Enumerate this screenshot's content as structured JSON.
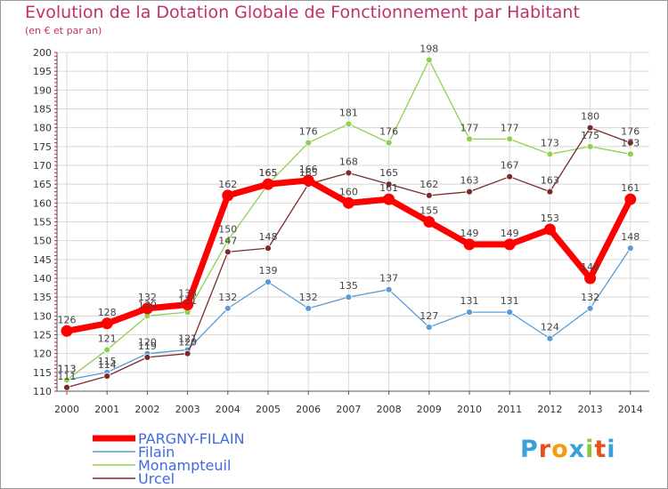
{
  "title": "Evolution de la Dotation Globale de Fonctionnement par Habitant",
  "subtitle": "(en € et par an)",
  "logo": {
    "text": "Proxiti"
  },
  "chart_data": {
    "type": "line",
    "x": [
      "2000",
      "2001",
      "2002",
      "2003",
      "2004",
      "2005",
      "2006",
      "2007",
      "2008",
      "2009",
      "2010",
      "2011",
      "2012",
      "2013",
      "2014"
    ],
    "ylim": [
      110,
      200
    ],
    "yticks": [
      110,
      115,
      120,
      125,
      130,
      135,
      140,
      145,
      150,
      155,
      160,
      165,
      170,
      175,
      180,
      185,
      190,
      195,
      200
    ],
    "grid": true,
    "legend_position": "bottom",
    "series": [
      {
        "name": "PARGNY-FILAIN",
        "color": "#ff0000",
        "values": [
          126,
          128,
          132,
          133,
          162,
          165,
          166,
          160,
          161,
          155,
          149,
          149,
          153,
          140,
          161
        ],
        "labels": [
          "126",
          "128",
          "132",
          "133",
          "162",
          "165",
          "166",
          "160",
          "161",
          "155",
          "149",
          "149",
          "153",
          "140",
          "161"
        ]
      },
      {
        "name": "Filain",
        "color": "#5b9bd5",
        "values": [
          113,
          115,
          120,
          121,
          132,
          139,
          132,
          135,
          137,
          127,
          131,
          131,
          124,
          132,
          148
        ],
        "labels": [
          "113",
          "115",
          "120",
          "121",
          "132",
          "139",
          "132",
          "135",
          "137",
          "127",
          "131",
          "131",
          "124",
          "132",
          "148"
        ]
      },
      {
        "name": "Monampteuil",
        "color": "#8fd14f",
        "values": [
          113,
          121,
          130,
          131,
          150,
          165,
          176,
          181,
          176,
          198,
          177,
          177,
          173,
          175,
          173
        ],
        "labels": [
          "113",
          "121",
          "130",
          "131",
          "150",
          "165",
          "176",
          "181",
          "176",
          "198",
          "177",
          "177",
          "173",
          "175",
          "173"
        ]
      },
      {
        "name": "Urcel",
        "color": "#7b2a2a",
        "values": [
          111,
          114,
          119,
          120,
          147,
          148,
          165,
          168,
          165,
          162,
          163,
          167,
          163,
          180,
          176
        ],
        "labels": [
          "111",
          "114",
          "119",
          "120",
          "147",
          "148",
          "165",
          "168",
          "165",
          "162",
          "163",
          "167",
          "163",
          "180",
          "176"
        ]
      }
    ]
  }
}
